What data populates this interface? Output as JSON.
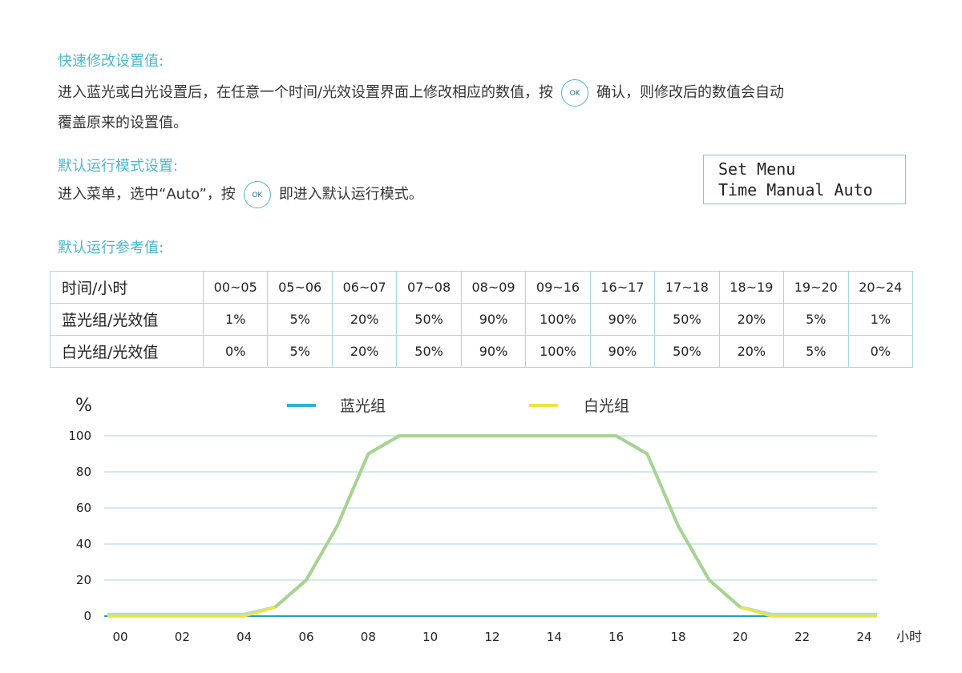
{
  "quick_edit": {
    "title": "快速修改设置值:",
    "text_before_ok": "进入蓝光或白光设置后，在任意一个时间/光效设置界面上修改相应的数值，按",
    "ok_label": "OK",
    "text_after_ok": "确认，则修改后的数值会自动",
    "text_line2": "覆盖原来的设置值。"
  },
  "default_mode": {
    "title": "默认运行模式设置:",
    "text_before_ok": "进入菜单，选中“Auto”，按",
    "ok_label": "OK",
    "text_after_ok": "即进入默认运行模式。"
  },
  "lcd": {
    "line1": "Set Menu",
    "line2": "Time Manual Auto"
  },
  "reference": {
    "title": "默认运行参考值:",
    "row_labels": [
      "时间/小时",
      "蓝光组/光效值",
      "白光组/光效值"
    ],
    "time_slots": [
      "00~05",
      "05~06",
      "06~07",
      "07~08",
      "08~09",
      "09~16",
      "16~17",
      "17~18",
      "18~19",
      "19~20",
      "20~24"
    ],
    "blue_values": [
      "1%",
      "5%",
      "20%",
      "50%",
      "90%",
      "100%",
      "90%",
      "50%",
      "20%",
      "5%",
      "1%"
    ],
    "white_values": [
      "0%",
      "5%",
      "20%",
      "50%",
      "90%",
      "100%",
      "90%",
      "50%",
      "20%",
      "5%",
      "0%"
    ]
  },
  "chart_data": {
    "type": "line",
    "ylabel": "%",
    "xlabel": "小时",
    "ylim": [
      0,
      100
    ],
    "xlim": [
      0,
      24
    ],
    "yticks": [
      "100",
      "80",
      "60",
      "40",
      "20",
      "0"
    ],
    "ytick_values": [
      100,
      80,
      60,
      40,
      20,
      0
    ],
    "xticks": [
      "00",
      "02",
      "04",
      "06",
      "08",
      "10",
      "12",
      "14",
      "16",
      "18",
      "20",
      "22",
      "24"
    ],
    "xtick_values": [
      0,
      2,
      4,
      6,
      8,
      10,
      12,
      14,
      16,
      18,
      20,
      22,
      24
    ],
    "grid": true,
    "legend_position": "top-center",
    "series": [
      {
        "name": "蓝光组",
        "color": "#2bb6d4",
        "x": [
          0,
          4,
          5,
          6,
          7,
          8,
          9,
          16,
          17,
          18,
          19,
          20,
          21,
          24
        ],
        "values": [
          1,
          1,
          5,
          20,
          50,
          90,
          100,
          100,
          90,
          50,
          20,
          5,
          1,
          1
        ]
      },
      {
        "name": "白光组",
        "color": "#f0e43c",
        "x": [
          0,
          4,
          5,
          6,
          7,
          8,
          9,
          16,
          17,
          18,
          19,
          20,
          21,
          24
        ],
        "values": [
          0,
          0,
          5,
          20,
          50,
          90,
          100,
          100,
          90,
          50,
          20,
          5,
          0,
          0
        ]
      }
    ],
    "overlap_color": "#a6d490"
  }
}
